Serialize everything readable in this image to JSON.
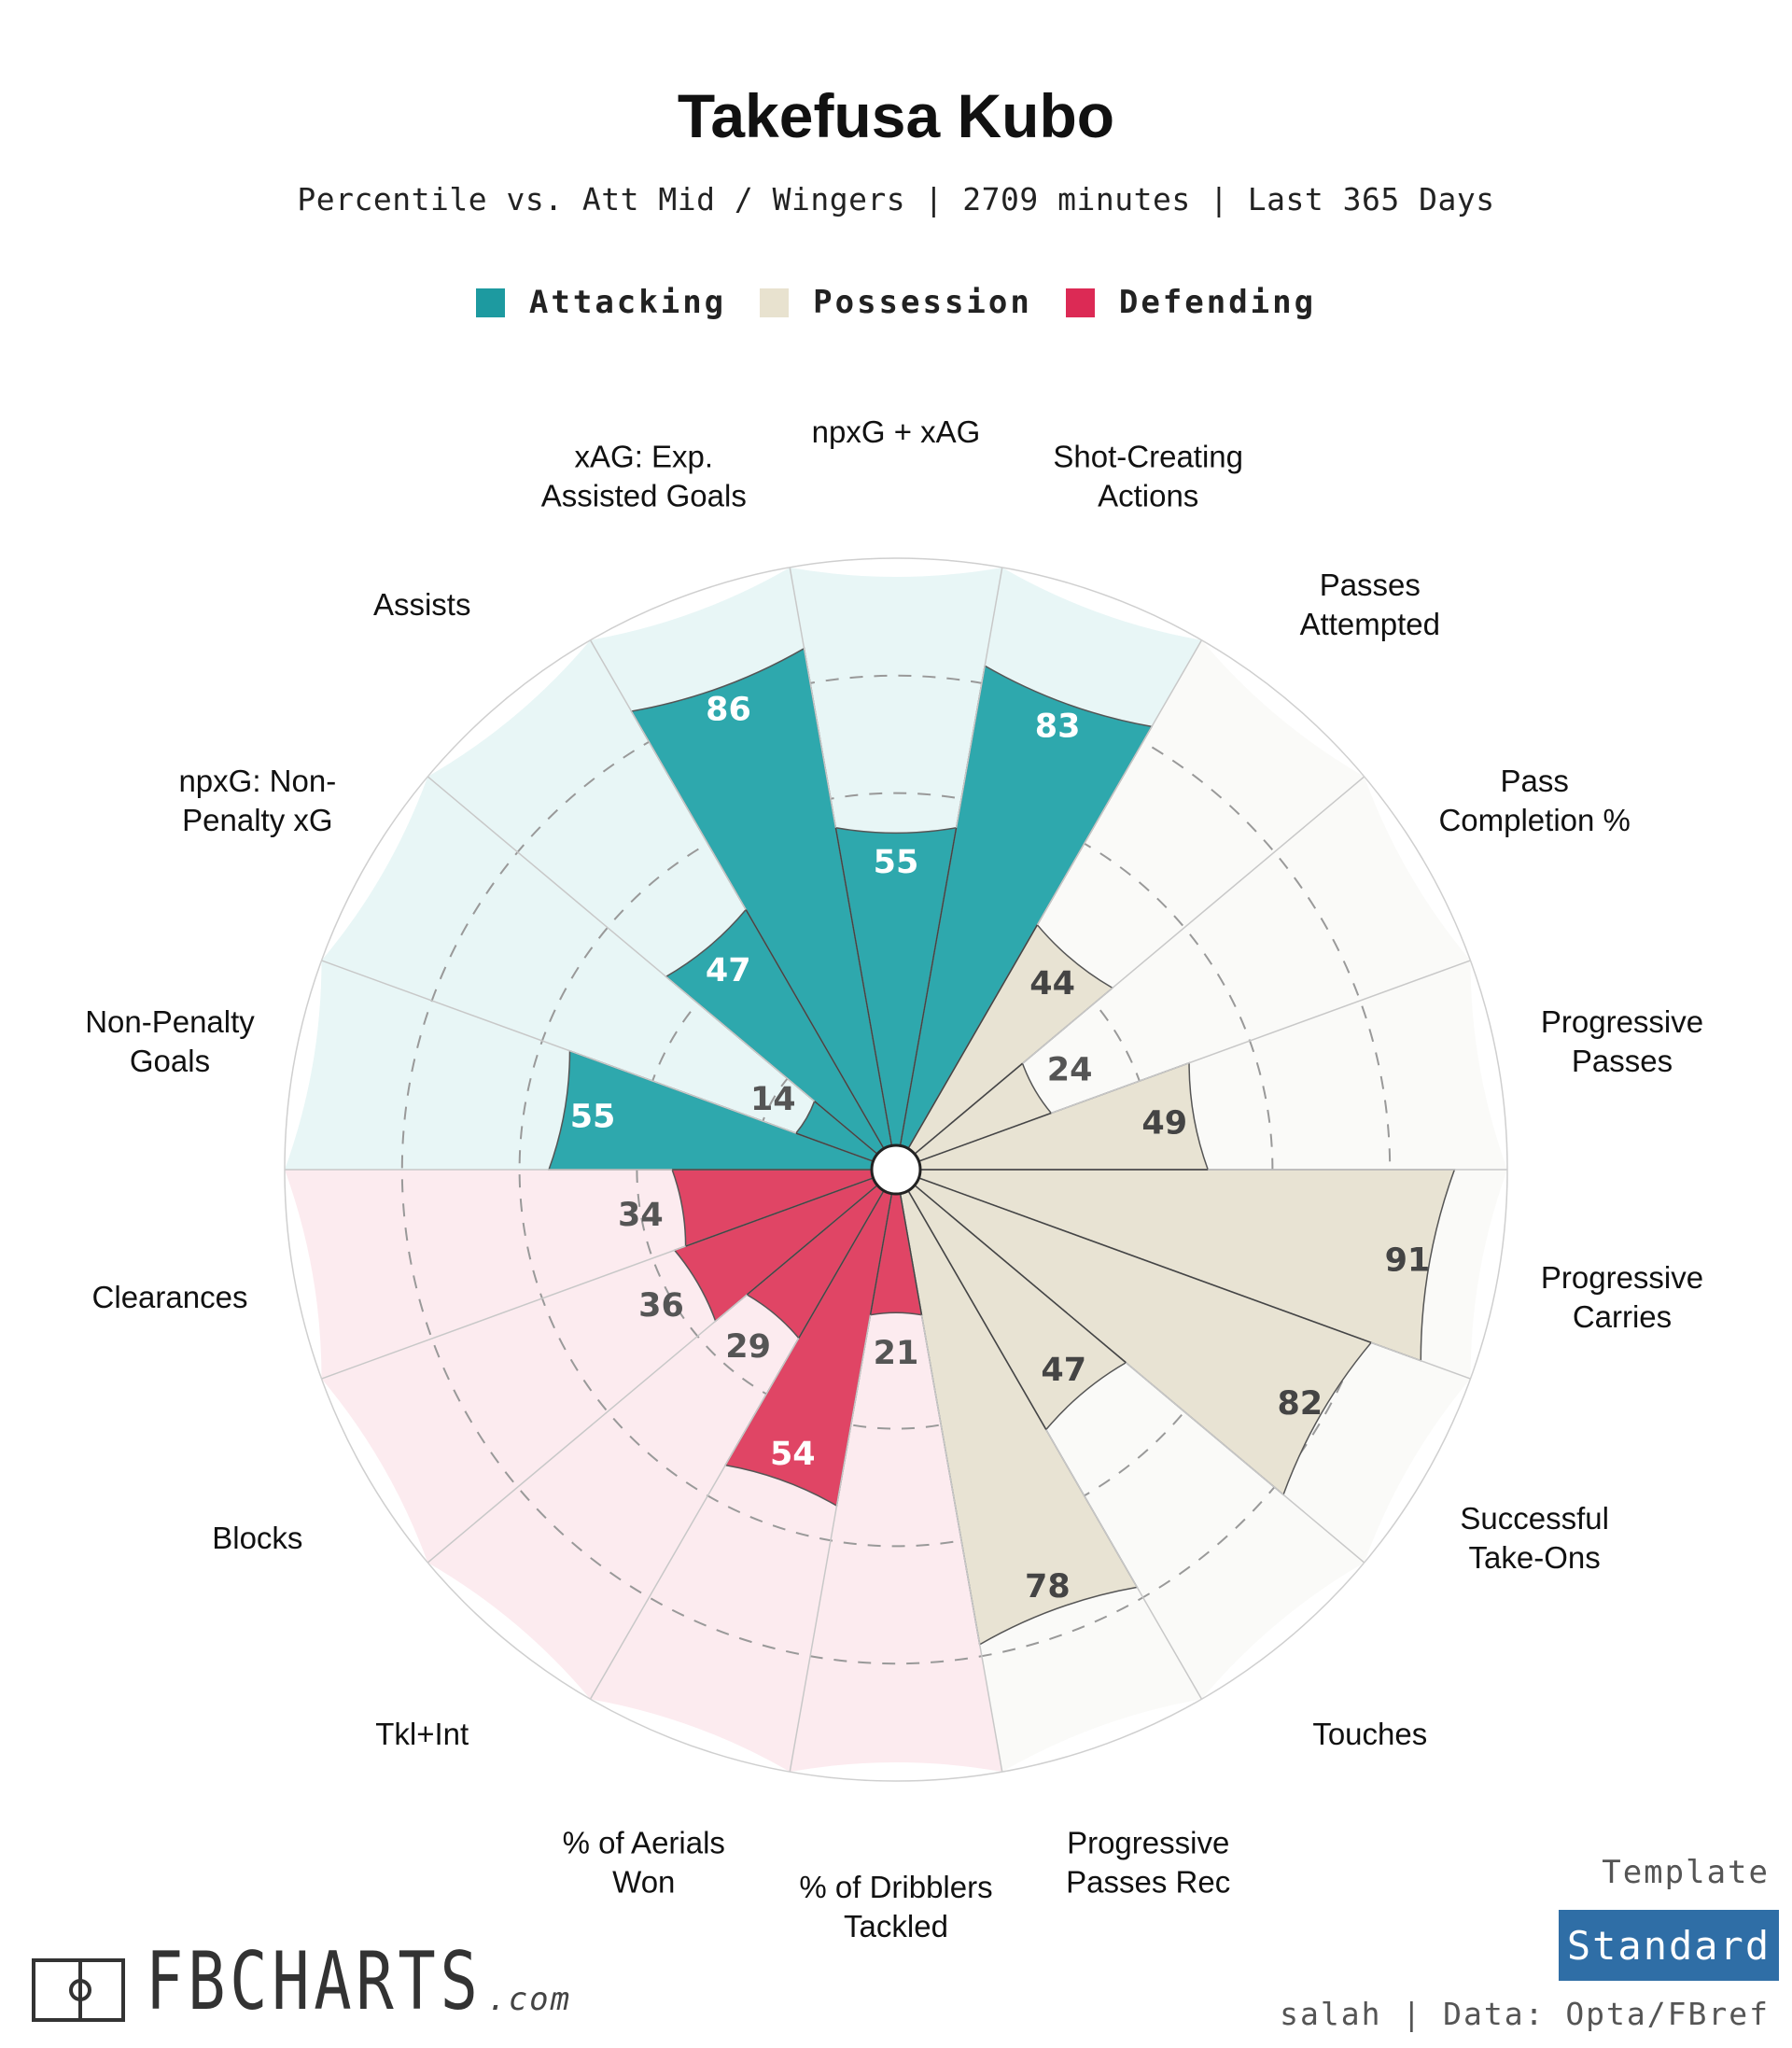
{
  "header": {
    "title": "Takefusa Kubo",
    "subtitle": "Percentile vs. Att Mid / Wingers | 2709 minutes | Last 365 Days"
  },
  "legend": [
    {
      "label": "Attacking",
      "color": "#1d9aa0"
    },
    {
      "label": "Possession",
      "color": "#e8e2cf"
    },
    {
      "label": "Defending",
      "color": "#dc2a55"
    }
  ],
  "colors": {
    "attacking": "#2ea8ad",
    "attacking_bg": "#e8f6f6",
    "possession": "#e8e3d3",
    "possession_bg": "#fafaf8",
    "defending": "#e04565",
    "defending_bg": "#fcebef",
    "badge": "#2f6ea6"
  },
  "chart_data": {
    "type": "polar-bar",
    "title": "Takefusa Kubo",
    "range": [
      0,
      100
    ],
    "series": [
      {
        "category": "Non-Penalty Goals",
        "label_lines": [
          "Non-Penalty",
          "Goals"
        ],
        "value": 55,
        "group": "Attacking"
      },
      {
        "category": "npxG: Non-Penalty xG",
        "label_lines": [
          "npxG: Non-",
          "Penalty xG"
        ],
        "value": 14,
        "group": "Attacking"
      },
      {
        "category": "Assists",
        "label_lines": [
          "Assists"
        ],
        "value": 47,
        "group": "Attacking"
      },
      {
        "category": "xAG: Exp. Assisted Goals",
        "label_lines": [
          "xAG: Exp.",
          "Assisted Goals"
        ],
        "value": 86,
        "group": "Attacking"
      },
      {
        "category": "npxG + xAG",
        "label_lines": [
          "npxG + xAG"
        ],
        "value": 55,
        "group": "Attacking"
      },
      {
        "category": "Shot-Creating Actions",
        "label_lines": [
          "Shot-Creating",
          "Actions"
        ],
        "value": 83,
        "group": "Attacking"
      },
      {
        "category": "Passes Attempted",
        "label_lines": [
          "Passes",
          "Attempted"
        ],
        "value": 44,
        "group": "Possession"
      },
      {
        "category": "Pass Completion %",
        "label_lines": [
          "Pass",
          "Completion %"
        ],
        "value": 24,
        "group": "Possession"
      },
      {
        "category": "Progressive Passes",
        "label_lines": [
          "Progressive",
          "Passes"
        ],
        "value": 49,
        "group": "Possession"
      },
      {
        "category": "Progressive Carries",
        "label_lines": [
          "Progressive",
          "Carries"
        ],
        "value": 91,
        "group": "Possession"
      },
      {
        "category": "Successful Take-Ons",
        "label_lines": [
          "Successful",
          "Take-Ons"
        ],
        "value": 82,
        "group": "Possession"
      },
      {
        "category": "Touches",
        "label_lines": [
          "Touches"
        ],
        "value": 47,
        "group": "Possession"
      },
      {
        "category": "Progressive Passes Rec",
        "label_lines": [
          "Progressive",
          "Passes Rec"
        ],
        "value": 78,
        "group": "Possession"
      },
      {
        "category": "% of Dribblers Tackled",
        "label_lines": [
          "% of Dribblers",
          "Tackled"
        ],
        "value": 21,
        "group": "Defending"
      },
      {
        "category": "% of Aerials Won",
        "label_lines": [
          "% of Aerials",
          "Won"
        ],
        "value": 54,
        "group": "Defending"
      },
      {
        "category": "Tkl+Int",
        "label_lines": [
          "Tkl+Int"
        ],
        "value": 29,
        "group": "Defending"
      },
      {
        "category": "Blocks",
        "label_lines": [
          "Blocks"
        ],
        "value": 36,
        "group": "Defending"
      },
      {
        "category": "Clearances",
        "label_lines": [
          "Clearances"
        ],
        "value": 34,
        "group": "Defending"
      }
    ]
  },
  "template": {
    "heading": "Template",
    "name": "Standard"
  },
  "footer": {
    "credit": "salah | Data: Opta/FBref"
  },
  "brand": {
    "name": "FBCHARTS",
    "suffix": ".com"
  }
}
